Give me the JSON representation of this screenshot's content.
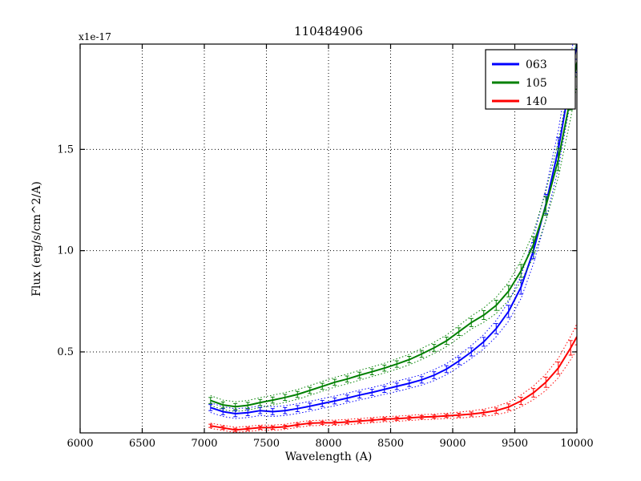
{
  "figure": {
    "background": "#ffffff",
    "border_color": "#000000",
    "grid_color": "#000000"
  },
  "chart_data": {
    "type": "line",
    "title": "110484906",
    "xlabel": "Wavelength (A)",
    "ylabel": "Flux (erg/s/cm^2/A)",
    "offset_text": "x1e-17",
    "xlim": [
      6000,
      10000
    ],
    "ylim": [
      0.1,
      2.02
    ],
    "x_ticks": [
      6000,
      6500,
      7000,
      7500,
      8000,
      8500,
      9000,
      9500,
      10000
    ],
    "x_tick_labels": [
      "6000",
      "6500",
      "7000",
      "7500",
      "8000",
      "8500",
      "9000",
      "9500",
      "10000"
    ],
    "y_ticks": [
      0.5,
      1.0,
      1.5
    ],
    "y_tick_labels": [
      "0.5",
      "1.0",
      "1.5"
    ],
    "grid": true,
    "legend": {
      "position": "upper right",
      "entries": [
        "063",
        "105",
        "140"
      ]
    },
    "series": [
      {
        "name": "063",
        "color": "#0000ff",
        "x": [
          7050,
          7150,
          7250,
          7350,
          7450,
          7550,
          7650,
          7750,
          7850,
          7950,
          8050,
          8150,
          8250,
          8350,
          8450,
          8550,
          8650,
          8750,
          8850,
          8950,
          9050,
          9150,
          9250,
          9350,
          9450,
          9550,
          9650,
          9750,
          9850,
          9950,
          10000
        ],
        "y": [
          0.225,
          0.205,
          0.195,
          0.2,
          0.21,
          0.205,
          0.21,
          0.22,
          0.232,
          0.245,
          0.258,
          0.272,
          0.287,
          0.3,
          0.315,
          0.33,
          0.345,
          0.362,
          0.385,
          0.415,
          0.455,
          0.5,
          0.55,
          0.615,
          0.7,
          0.82,
          1.0,
          1.23,
          1.5,
          1.85,
          2.02
        ],
        "err": [
          0.015,
          0.015,
          0.015,
          0.015,
          0.015,
          0.015,
          0.015,
          0.015,
          0.015,
          0.015,
          0.015,
          0.015,
          0.015,
          0.015,
          0.015,
          0.016,
          0.016,
          0.016,
          0.017,
          0.017,
          0.018,
          0.02,
          0.022,
          0.025,
          0.03,
          0.035,
          0.04,
          0.048,
          0.058,
          0.068,
          0.075
        ]
      },
      {
        "name": "105",
        "color": "#008000",
        "x": [
          7050,
          7150,
          7250,
          7350,
          7450,
          7550,
          7650,
          7750,
          7850,
          7950,
          8050,
          8150,
          8250,
          8350,
          8450,
          8550,
          8650,
          8750,
          8850,
          8950,
          9050,
          9150,
          9250,
          9350,
          9450,
          9550,
          9650,
          9750,
          9850,
          9950,
          10000
        ],
        "y": [
          0.26,
          0.238,
          0.23,
          0.236,
          0.25,
          0.262,
          0.275,
          0.29,
          0.31,
          0.33,
          0.35,
          0.366,
          0.385,
          0.402,
          0.42,
          0.44,
          0.462,
          0.49,
          0.52,
          0.555,
          0.6,
          0.645,
          0.682,
          0.73,
          0.8,
          0.9,
          1.03,
          1.22,
          1.45,
          1.76,
          1.93
        ],
        "err": [
          0.015,
          0.015,
          0.015,
          0.015,
          0.015,
          0.015,
          0.015,
          0.015,
          0.015,
          0.015,
          0.015,
          0.015,
          0.015,
          0.015,
          0.015,
          0.016,
          0.016,
          0.017,
          0.017,
          0.018,
          0.019,
          0.02,
          0.022,
          0.025,
          0.028,
          0.032,
          0.038,
          0.045,
          0.055,
          0.065,
          0.072
        ]
      },
      {
        "name": "140",
        "color": "#ff0000",
        "x": [
          7050,
          7150,
          7250,
          7350,
          7450,
          7550,
          7650,
          7750,
          7850,
          7950,
          8050,
          8150,
          8250,
          8350,
          8450,
          8550,
          8650,
          8750,
          8850,
          8950,
          9050,
          9150,
          9250,
          9350,
          9450,
          9550,
          9650,
          9750,
          9850,
          9950,
          10000
        ],
        "y": [
          0.135,
          0.125,
          0.115,
          0.12,
          0.126,
          0.126,
          0.13,
          0.14,
          0.148,
          0.15,
          0.15,
          0.154,
          0.158,
          0.163,
          0.168,
          0.17,
          0.174,
          0.178,
          0.18,
          0.184,
          0.188,
          0.193,
          0.2,
          0.21,
          0.228,
          0.258,
          0.298,
          0.35,
          0.42,
          0.52,
          0.575
        ],
        "err": [
          0.008,
          0.008,
          0.008,
          0.008,
          0.008,
          0.008,
          0.008,
          0.008,
          0.008,
          0.008,
          0.008,
          0.008,
          0.008,
          0.008,
          0.008,
          0.008,
          0.008,
          0.008,
          0.008,
          0.008,
          0.009,
          0.01,
          0.011,
          0.013,
          0.015,
          0.018,
          0.021,
          0.025,
          0.03,
          0.036,
          0.04
        ]
      }
    ]
  }
}
